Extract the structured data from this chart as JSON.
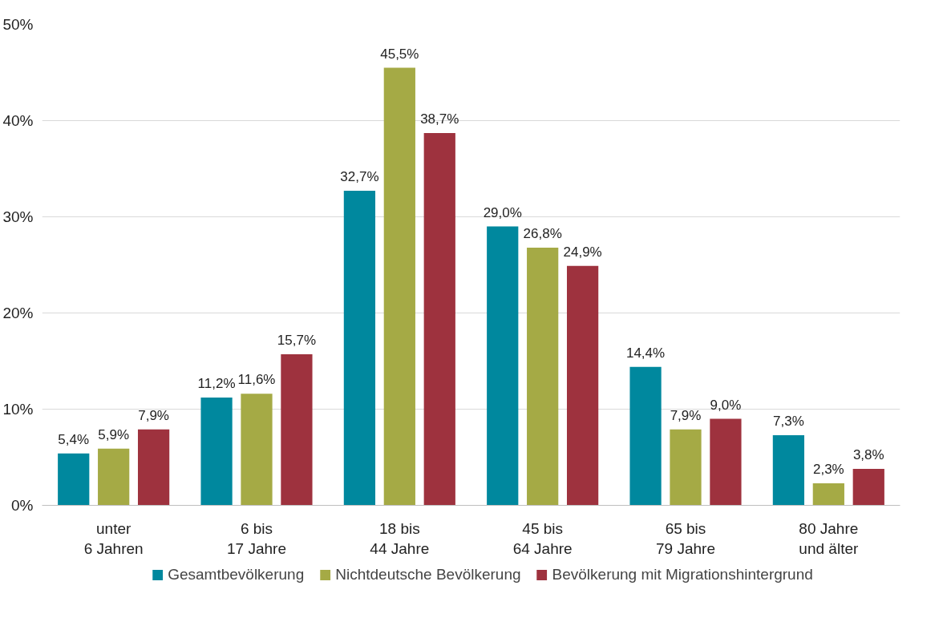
{
  "chart_data": {
    "type": "bar",
    "categories": [
      "unter\n6 Jahren",
      "6 bis\n17 Jahre",
      "18 bis\n44 Jahre",
      "45 bis\n64 Jahre",
      "65 bis\n79 Jahre",
      "80 Jahre\nund älter"
    ],
    "series": [
      {
        "name": "Gesamtbevölkerung",
        "color": "#00889e",
        "values": [
          5.4,
          11.2,
          32.7,
          29.0,
          14.4,
          7.3
        ],
        "value_labels": [
          "5,4%",
          "11,2%",
          "32,7%",
          "29,0%",
          "14,4%",
          "7,3%"
        ]
      },
      {
        "name": "Nichtdeutsche Bevölkerung",
        "color": "#a5aa45",
        "values": [
          5.9,
          11.6,
          45.5,
          26.8,
          7.9,
          2.3
        ],
        "value_labels": [
          "5,9%",
          "11,6%",
          "45,5%",
          "26,8%",
          "7,9%",
          "2,3%"
        ]
      },
      {
        "name": "Bevölkerung mit Migrationshintergrund",
        "color": "#9e323e",
        "values": [
          7.9,
          15.7,
          38.7,
          24.9,
          9.0,
          3.8
        ],
        "value_labels": [
          "7,9%",
          "15,7%",
          "38,7%",
          "24,9%",
          "9,0%",
          "3,8%"
        ]
      }
    ],
    "ylim": [
      0,
      50
    ],
    "yticks": [
      {
        "value": 0,
        "label": "0%"
      },
      {
        "value": 10,
        "label": "10%"
      },
      {
        "value": 20,
        "label": "20%"
      },
      {
        "value": 30,
        "label": "30%"
      },
      {
        "value": 40,
        "label": "40%"
      },
      {
        "value": 50,
        "label": "50%"
      }
    ],
    "grid": "y",
    "legend": "bottom"
  }
}
